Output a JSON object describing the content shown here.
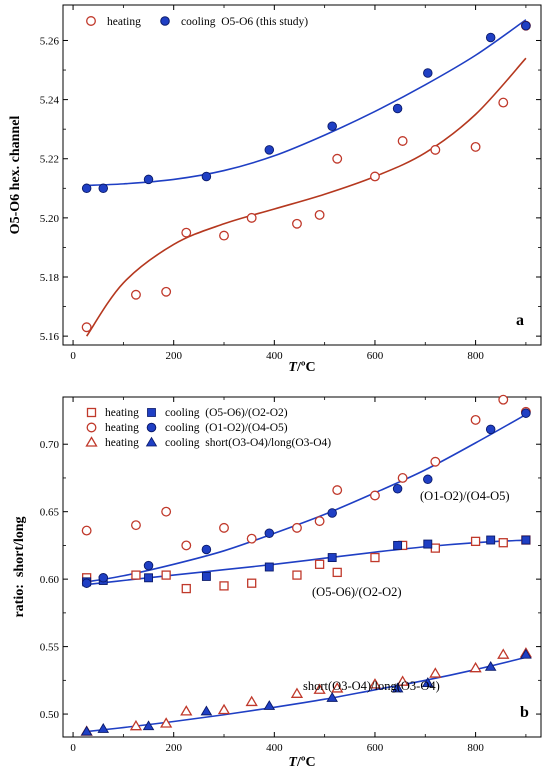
{
  "chart_data": [
    {
      "type": "scatter",
      "panel_label": "a",
      "xlabel_italic": "T",
      "xlabel_rest": "/ºC",
      "ylabel": "O5-O6 hex. channel",
      "xlim": [
        -20,
        930
      ],
      "ylim": [
        5.157,
        5.272
      ],
      "xticks": [
        0,
        200,
        400,
        600,
        800
      ],
      "xtick_labels": [
        "0",
        "200",
        "400",
        "600",
        "800"
      ],
      "yticks": [
        5.16,
        5.18,
        5.2,
        5.22,
        5.24,
        5.26
      ],
      "ytick_labels": [
        "5.16",
        "5.18",
        "5.20",
        "5.22",
        "5.24",
        "5.26"
      ],
      "grid": false,
      "legend_position": "top-left",
      "legend": [
        {
          "label": "heating",
          "marker": "open-circle",
          "color": "#c0392b"
        },
        {
          "label": "cooling  O5-O6 (this study)",
          "marker": "filled-circle",
          "color": "#1f3fc4"
        }
      ],
      "series": [
        {
          "name": "heating",
          "marker": "open-circle",
          "color": "#c0392b",
          "x": [
            27,
            125,
            185,
            225,
            300,
            355,
            445,
            490,
            525,
            600,
            655,
            720,
            800,
            855,
            900
          ],
          "y": [
            5.163,
            5.174,
            5.175,
            5.195,
            5.194,
            5.2,
            5.198,
            5.201,
            5.22,
            5.214,
            5.226,
            5.223,
            5.224,
            5.239,
            5.265
          ]
        },
        {
          "name": "cooling  O5-O6 (this study)",
          "marker": "filled-circle",
          "color": "#1f3fc4",
          "x": [
            27,
            60,
            150,
            265,
            390,
            515,
            645,
            705,
            830,
            900
          ],
          "y": [
            5.21,
            5.21,
            5.213,
            5.214,
            5.223,
            5.231,
            5.237,
            5.249,
            5.261,
            5.265
          ]
        }
      ],
      "fits": [
        {
          "color": "#b5381f",
          "x": [
            27,
            100,
            200,
            300,
            400,
            500,
            600,
            700,
            800,
            900
          ],
          "y": [
            5.16,
            5.178,
            5.191,
            5.198,
            5.203,
            5.208,
            5.214,
            5.222,
            5.235,
            5.254
          ]
        },
        {
          "color": "#1f3fc4",
          "x": [
            27,
            100,
            200,
            300,
            400,
            500,
            600,
            700,
            800,
            900
          ],
          "y": [
            5.211,
            5.2115,
            5.213,
            5.216,
            5.221,
            5.228,
            5.236,
            5.245,
            5.255,
            5.267
          ]
        }
      ]
    },
    {
      "type": "scatter",
      "panel_label": "b",
      "xlabel_italic": "T",
      "xlabel_rest": "/ºC",
      "ylabel": "ratio:  short/long",
      "xlim": [
        -20,
        930
      ],
      "ylim": [
        0.483,
        0.735
      ],
      "xticks": [
        0,
        200,
        400,
        600,
        800
      ],
      "xtick_labels": [
        "0",
        "200",
        "400",
        "600",
        "800"
      ],
      "yticks": [
        0.5,
        0.55,
        0.6,
        0.65,
        0.7
      ],
      "ytick_labels": [
        "0.50",
        "0.55",
        "0.60",
        "0.65",
        "0.70"
      ],
      "grid": false,
      "legend_position": "top-left",
      "legend": [
        {
          "heating_label": "heating",
          "cooling_label": "cooling  (O5-O6)/(O2-O2)",
          "marker": "square"
        },
        {
          "heating_label": "heating",
          "cooling_label": "cooling  (O1-O2)/(O4-O5)",
          "marker": "circle"
        },
        {
          "heating_label": "heating",
          "cooling_label": "cooling  short(O3-O4)/long(O3-O4)",
          "marker": "triangle"
        }
      ],
      "annotations": [
        "(O1-O2)/(O4-O5)",
        "(O5-O6)/(O2-O2)",
        "short(O3-O4)/long(O3-O4)"
      ],
      "series": [
        {
          "name": "heating (O5-O6)/(O2-O2)",
          "marker": "open-square",
          "color": "#c0392b",
          "x": [
            27,
            125,
            185,
            225,
            300,
            355,
            445,
            490,
            525,
            600,
            655,
            720,
            800,
            855,
            900
          ],
          "y": [
            0.601,
            0.603,
            0.603,
            0.593,
            0.595,
            0.597,
            0.603,
            0.611,
            0.605,
            0.616,
            0.625,
            0.623,
            0.628,
            0.627,
            0.629
          ]
        },
        {
          "name": "cooling (O5-O6)/(O2-O2)",
          "marker": "filled-square",
          "color": "#1f3fc4",
          "x": [
            27,
            60,
            150,
            265,
            390,
            515,
            645,
            705,
            830,
            900
          ],
          "y": [
            0.598,
            0.599,
            0.601,
            0.602,
            0.609,
            0.616,
            0.625,
            0.626,
            0.629,
            0.629
          ]
        },
        {
          "name": "heating (O1-O2)/(O4-O5)",
          "marker": "open-circle",
          "color": "#c0392b",
          "x": [
            27,
            125,
            185,
            225,
            300,
            355,
            445,
            490,
            525,
            600,
            655,
            720,
            800,
            855,
            900
          ],
          "y": [
            0.636,
            0.64,
            0.65,
            0.625,
            0.638,
            0.63,
            0.638,
            0.643,
            0.666,
            0.662,
            0.675,
            0.687,
            0.718,
            0.733,
            0.724
          ]
        },
        {
          "name": "cooling (O1-O2)/(O4-O5)",
          "marker": "filled-circle",
          "color": "#1f3fc4",
          "x": [
            27,
            60,
            150,
            265,
            390,
            515,
            645,
            705,
            830,
            900
          ],
          "y": [
            0.597,
            0.601,
            0.61,
            0.622,
            0.634,
            0.649,
            0.667,
            0.674,
            0.711,
            0.723
          ]
        },
        {
          "name": "heating short(O3-O4)/long(O3-O4)",
          "marker": "open-triangle",
          "color": "#c0392b",
          "x": [
            27,
            125,
            185,
            225,
            300,
            355,
            445,
            490,
            525,
            600,
            655,
            720,
            800,
            855,
            900
          ],
          "y": [
            0.487,
            0.491,
            0.493,
            0.502,
            0.503,
            0.509,
            0.515,
            0.518,
            0.519,
            0.522,
            0.524,
            0.53,
            0.534,
            0.544,
            0.545
          ]
        },
        {
          "name": "cooling short(O3-O4)/long(O3-O4)",
          "marker": "filled-triangle",
          "color": "#1f3fc4",
          "x": [
            27,
            60,
            150,
            265,
            390,
            515,
            645,
            705,
            830,
            900
          ],
          "y": [
            0.487,
            0.489,
            0.491,
            0.502,
            0.506,
            0.512,
            0.519,
            0.523,
            0.535,
            0.544
          ]
        }
      ],
      "fits": [
        {
          "color": "#1f3fc4",
          "x": [
            27,
            100,
            200,
            300,
            400,
            500,
            600,
            700,
            800,
            900
          ],
          "y": [
            0.598,
            0.6025,
            0.611,
            0.621,
            0.634,
            0.648,
            0.664,
            0.681,
            0.701,
            0.722
          ]
        },
        {
          "color": "#1f3fc4",
          "x": [
            27,
            100,
            200,
            300,
            400,
            500,
            600,
            700,
            800,
            900
          ],
          "y": [
            0.596,
            0.599,
            0.603,
            0.607,
            0.611,
            0.6155,
            0.62,
            0.624,
            0.627,
            0.629
          ]
        },
        {
          "color": "#1f3fc4",
          "x": [
            27,
            100,
            200,
            300,
            400,
            500,
            600,
            700,
            800,
            900
          ],
          "y": [
            0.487,
            0.49,
            0.4945,
            0.4995,
            0.505,
            0.511,
            0.518,
            0.525,
            0.533,
            0.542
          ]
        }
      ]
    }
  ]
}
